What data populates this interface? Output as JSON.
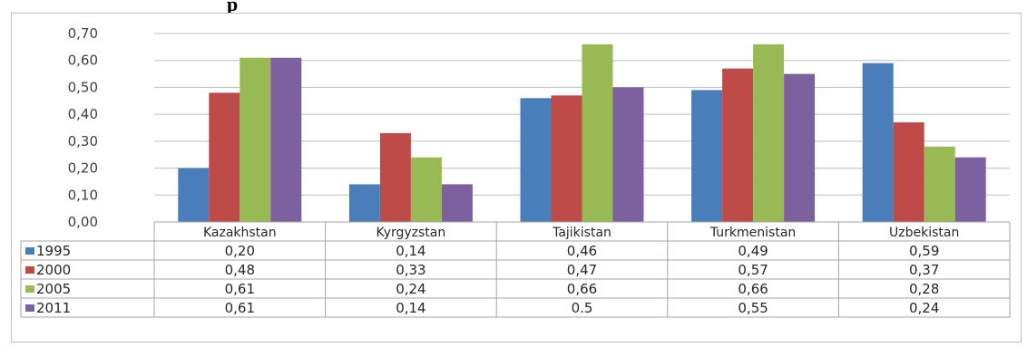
{
  "header_fragment": "p",
  "chart_data": {
    "type": "bar",
    "categories": [
      "Kazakhstan",
      "Kyrgyzstan",
      "Tajikistan",
      "Turkmenistan",
      "Uzbekistan"
    ],
    "series": [
      {
        "name": "1995",
        "color": "#4a7ebb",
        "values": [
          0.2,
          0.14,
          0.46,
          0.49,
          0.59
        ],
        "labels": [
          "0,20",
          "0,14",
          "0,46",
          "0,49",
          "0,59"
        ]
      },
      {
        "name": "2000",
        "color": "#be4b48",
        "values": [
          0.48,
          0.33,
          0.47,
          0.57,
          0.37
        ],
        "labels": [
          "0,48",
          "0,33",
          "0,47",
          "0,57",
          "0,37"
        ]
      },
      {
        "name": "2005",
        "color": "#98b954",
        "values": [
          0.61,
          0.24,
          0.66,
          0.66,
          0.28
        ],
        "labels": [
          "0,61",
          "0,24",
          "0,66",
          "0,66",
          "0,28"
        ]
      },
      {
        "name": "2011",
        "color": "#7d60a0",
        "values": [
          0.61,
          0.14,
          0.5,
          0.55,
          0.24
        ],
        "labels": [
          "0,61",
          "0,14",
          "0.5",
          "0,55",
          "0,24"
        ]
      }
    ],
    "ylim": [
      0,
      0.7
    ],
    "yticks": [
      0,
      0.1,
      0.2,
      0.3,
      0.4,
      0.5,
      0.6,
      0.7
    ],
    "ytick_labels": [
      "0,00",
      "0,10",
      "0,20",
      "0,30",
      "0,40",
      "0,50",
      "0,60",
      "0,70"
    ],
    "grid": true,
    "legend": "data-table",
    "title": "",
    "xlabel": "",
    "ylabel": ""
  }
}
